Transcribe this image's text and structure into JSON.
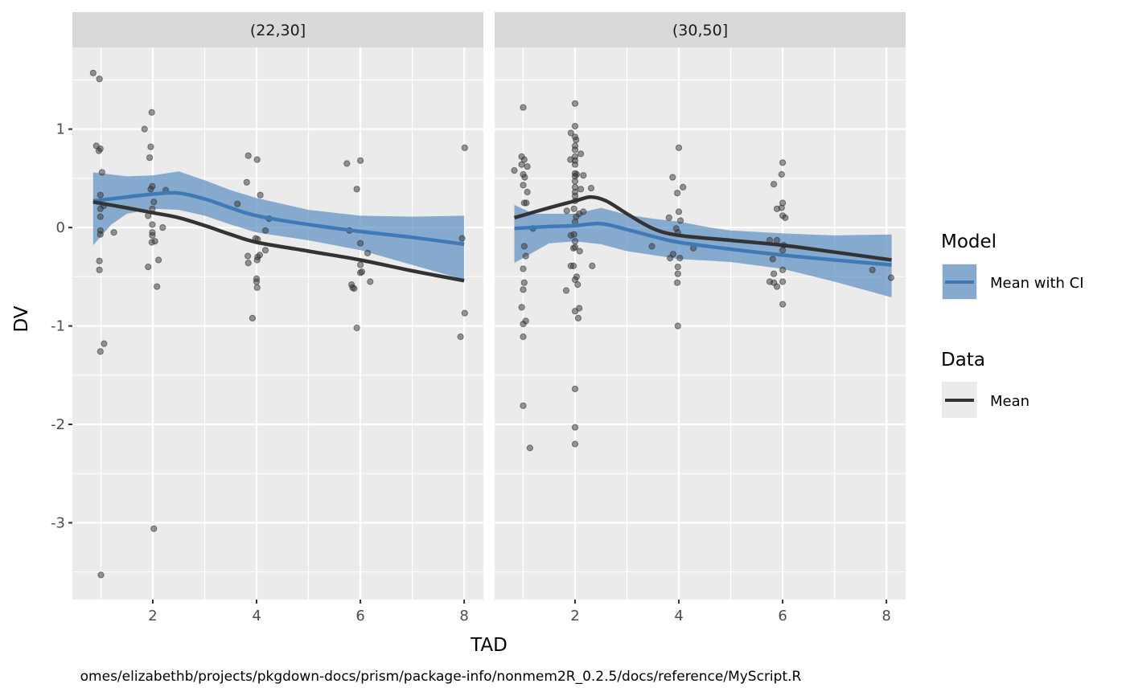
{
  "chart_data": {
    "type": "scatter",
    "title": "",
    "xlabel": "TAD",
    "ylabel": "DV",
    "caption": "omes/elizabethb/projects/pkgdown-docs/prism/package-info/nonmem2R_0.2.5/docs/reference/MyScript.R",
    "xlim": [
      0.45,
      8.37
    ],
    "ylim": [
      -3.78,
      1.83
    ],
    "x_ticks": [
      2,
      4,
      6,
      8
    ],
    "x_tick_labels": [
      "2",
      "4",
      "6",
      "8"
    ],
    "y_ticks": [
      1,
      0,
      -1,
      -2,
      -3
    ],
    "y_tick_labels": [
      "1",
      "0",
      "-1",
      "-2",
      "-3"
    ],
    "grid": true,
    "colors": {
      "points": "#333333",
      "data_mean": "#333333",
      "model_mean": "#3f7ab5",
      "model_ci": "#5b8fc2",
      "panel_bg": "#ebebeb",
      "strip_bg": "#d9d9d9"
    },
    "legend": {
      "position": "right",
      "groups": [
        {
          "title": "Model",
          "entries": [
            {
              "label": "Mean with CI",
              "kind": "ribbon-line"
            }
          ]
        },
        {
          "title": "Data",
          "entries": [
            {
              "label": "Mean",
              "kind": "line"
            }
          ]
        }
      ]
    },
    "panels": [
      {
        "strip": "(22,30]",
        "points": [
          [
            0.85,
            1.57
          ],
          [
            0.97,
            1.51
          ],
          [
            0.91,
            0.83
          ],
          [
            0.99,
            0.8
          ],
          [
            0.96,
            0.78
          ],
          [
            1.02,
            0.56
          ],
          [
            0.99,
            0.33
          ],
          [
            0.99,
            0.19
          ],
          [
            0.99,
            0.11
          ],
          [
            1.05,
            0.22
          ],
          [
            0.99,
            -0.03
          ],
          [
            0.99,
            -0.07
          ],
          [
            1.25,
            -0.05
          ],
          [
            0.97,
            -0.34
          ],
          [
            0.97,
            -0.43
          ],
          [
            1.06,
            -1.18
          ],
          [
            0.99,
            -1.26
          ],
          [
            1.0,
            -3.53
          ],
          [
            1.98,
            1.17
          ],
          [
            1.84,
            1.0
          ],
          [
            1.96,
            0.82
          ],
          [
            1.94,
            0.71
          ],
          [
            1.99,
            0.42
          ],
          [
            1.96,
            0.39
          ],
          [
            2.25,
            0.38
          ],
          [
            2.02,
            0.26
          ],
          [
            1.99,
            0.19
          ],
          [
            1.91,
            0.12
          ],
          [
            1.99,
            0.03
          ],
          [
            2.19,
            0.0
          ],
          [
            1.99,
            -0.05
          ],
          [
            1.99,
            -0.08
          ],
          [
            2.04,
            -0.14
          ],
          [
            1.98,
            -0.15
          ],
          [
            2.11,
            -0.33
          ],
          [
            1.91,
            -0.4
          ],
          [
            2.08,
            -0.6
          ],
          [
            2.02,
            -3.06
          ],
          [
            3.84,
            0.73
          ],
          [
            4.01,
            0.69
          ],
          [
            3.81,
            0.46
          ],
          [
            4.07,
            0.33
          ],
          [
            3.63,
            0.24
          ],
          [
            4.24,
            0.09
          ],
          [
            4.17,
            -0.03
          ],
          [
            3.98,
            -0.11
          ],
          [
            4.02,
            -0.12
          ],
          [
            3.83,
            -0.29
          ],
          [
            4.02,
            -0.3
          ],
          [
            4.06,
            -0.28
          ],
          [
            4.17,
            -0.23
          ],
          [
            3.84,
            -0.36
          ],
          [
            4.01,
            -0.33
          ],
          [
            4.0,
            -0.52
          ],
          [
            4.0,
            -0.55
          ],
          [
            4.01,
            -0.61
          ],
          [
            3.92,
            -0.92
          ],
          [
            5.74,
            0.65
          ],
          [
            6.0,
            0.68
          ],
          [
            5.93,
            0.39
          ],
          [
            5.79,
            -0.03
          ],
          [
            6.0,
            -0.16
          ],
          [
            6.14,
            -0.26
          ],
          [
            6.0,
            -0.38
          ],
          [
            6.0,
            -0.46
          ],
          [
            6.03,
            -0.45
          ],
          [
            6.19,
            -0.55
          ],
          [
            5.83,
            -0.58
          ],
          [
            5.85,
            -0.61
          ],
          [
            5.88,
            -0.62
          ],
          [
            5.93,
            -1.02
          ],
          [
            8.01,
            0.81
          ],
          [
            7.96,
            -0.11
          ],
          [
            8.01,
            -0.87
          ],
          [
            7.93,
            -1.11
          ]
        ],
        "data_mean": [
          [
            0.85,
            0.26
          ],
          [
            1.5,
            0.2
          ],
          [
            2.0,
            0.15
          ],
          [
            2.5,
            0.1
          ],
          [
            3.0,
            0.02
          ],
          [
            3.5,
            -0.07
          ],
          [
            4.0,
            -0.15
          ],
          [
            5.0,
            -0.24
          ],
          [
            6.0,
            -0.33
          ],
          [
            7.0,
            -0.44
          ],
          [
            8.0,
            -0.54
          ]
        ],
        "model_mean": [
          [
            0.85,
            0.27
          ],
          [
            1.5,
            0.31
          ],
          [
            2.0,
            0.34
          ],
          [
            2.5,
            0.35
          ],
          [
            3.0,
            0.29
          ],
          [
            3.5,
            0.2
          ],
          [
            4.0,
            0.12
          ],
          [
            5.0,
            0.03
          ],
          [
            6.0,
            -0.04
          ],
          [
            7.0,
            -0.1
          ],
          [
            8.0,
            -0.17
          ]
        ],
        "ci_upper": [
          [
            0.85,
            0.56
          ],
          [
            1.5,
            0.52
          ],
          [
            2.0,
            0.53
          ],
          [
            2.5,
            0.57
          ],
          [
            3.0,
            0.48
          ],
          [
            3.5,
            0.38
          ],
          [
            4.0,
            0.3
          ],
          [
            5.0,
            0.18
          ],
          [
            6.0,
            0.12
          ],
          [
            7.0,
            0.11
          ],
          [
            8.0,
            0.12
          ]
        ],
        "ci_lower": [
          [
            0.85,
            -0.18
          ],
          [
            1.2,
            0.03
          ],
          [
            1.5,
            0.14
          ],
          [
            2.0,
            0.19
          ],
          [
            2.5,
            0.18
          ],
          [
            3.0,
            0.12
          ],
          [
            3.5,
            0.03
          ],
          [
            4.0,
            -0.05
          ],
          [
            5.0,
            -0.13
          ],
          [
            6.0,
            -0.23
          ],
          [
            7.0,
            -0.38
          ],
          [
            8.0,
            -0.53
          ]
        ]
      },
      {
        "strip": "(30,50]",
        "points": [
          [
            0.83,
            0.58
          ],
          [
            0.97,
            0.72
          ],
          [
            1.02,
            0.69
          ],
          [
            0.97,
            0.64
          ],
          [
            1.08,
            0.62
          ],
          [
            1.0,
            0.54
          ],
          [
            1.03,
            0.51
          ],
          [
            1.0,
            0.43
          ],
          [
            1.08,
            0.36
          ],
          [
            1.02,
            0.25
          ],
          [
            1.06,
            0.25
          ],
          [
            1.19,
            -0.01
          ],
          [
            1.02,
            -0.19
          ],
          [
            1.05,
            -0.29
          ],
          [
            1.0,
            -0.42
          ],
          [
            1.02,
            -0.56
          ],
          [
            1.0,
            -0.63
          ],
          [
            0.97,
            -0.81
          ],
          [
            1.05,
            -0.95
          ],
          [
            1.0,
            -0.98
          ],
          [
            1.0,
            -1.11
          ],
          [
            1.0,
            -1.81
          ],
          [
            1.13,
            -2.24
          ],
          [
            1.0,
            1.22
          ],
          [
            2.0,
            1.26
          ],
          [
            2.0,
            1.03
          ],
          [
            1.92,
            0.96
          ],
          [
            2.0,
            0.92
          ],
          [
            2.02,
            0.89
          ],
          [
            2.0,
            0.83
          ],
          [
            2.0,
            0.79
          ],
          [
            2.11,
            0.75
          ],
          [
            2.0,
            0.72
          ],
          [
            1.91,
            0.69
          ],
          [
            2.0,
            0.68
          ],
          [
            2.0,
            0.64
          ],
          [
            2.0,
            0.55
          ],
          [
            2.03,
            0.54
          ],
          [
            2.0,
            0.52
          ],
          [
            2.16,
            0.53
          ],
          [
            2.0,
            0.47
          ],
          [
            2.0,
            0.41
          ],
          [
            2.11,
            0.39
          ],
          [
            2.31,
            0.4
          ],
          [
            2.0,
            0.36
          ],
          [
            2.0,
            0.32
          ],
          [
            2.0,
            0.27
          ],
          [
            1.84,
            0.17
          ],
          [
            1.98,
            0.19
          ],
          [
            2.16,
            0.16
          ],
          [
            2.02,
            0.11
          ],
          [
            2.08,
            0.14
          ],
          [
            2.0,
            0.06
          ],
          [
            1.98,
            -0.07
          ],
          [
            1.92,
            -0.08
          ],
          [
            2.0,
            -0.14
          ],
          [
            2.0,
            -0.2
          ],
          [
            1.97,
            -0.21
          ],
          [
            2.09,
            -0.24
          ],
          [
            1.97,
            -0.39
          ],
          [
            2.33,
            -0.39
          ],
          [
            1.92,
            -0.39
          ],
          [
            1.83,
            -0.64
          ],
          [
            2.03,
            -0.5
          ],
          [
            2.0,
            -0.53
          ],
          [
            2.05,
            -0.58
          ],
          [
            2.0,
            -0.85
          ],
          [
            2.08,
            -0.82
          ],
          [
            2.06,
            -0.92
          ],
          [
            2.0,
            -1.64
          ],
          [
            2.0,
            -2.03
          ],
          [
            2.0,
            -2.2
          ],
          [
            3.88,
            0.51
          ],
          [
            4.0,
            0.81
          ],
          [
            3.81,
            0.1
          ],
          [
            3.97,
            0.35
          ],
          [
            4.08,
            0.41
          ],
          [
            4.0,
            0.16
          ],
          [
            4.03,
            0.07
          ],
          [
            3.95,
            -0.01
          ],
          [
            3.98,
            -0.05
          ],
          [
            3.48,
            -0.19
          ],
          [
            4.28,
            -0.21
          ],
          [
            3.89,
            -0.27
          ],
          [
            3.83,
            -0.31
          ],
          [
            4.02,
            -0.31
          ],
          [
            3.98,
            -0.4
          ],
          [
            3.98,
            -0.47
          ],
          [
            3.97,
            -0.56
          ],
          [
            3.98,
            -1.0
          ],
          [
            6.0,
            0.66
          ],
          [
            5.98,
            0.54
          ],
          [
            5.83,
            0.44
          ],
          [
            5.89,
            0.19
          ],
          [
            6.0,
            0.25
          ],
          [
            5.98,
            0.2
          ],
          [
            6.0,
            0.12
          ],
          [
            6.05,
            0.1
          ],
          [
            5.75,
            -0.13
          ],
          [
            5.89,
            -0.13
          ],
          [
            6.02,
            -0.18
          ],
          [
            6.0,
            -0.23
          ],
          [
            5.81,
            -0.32
          ],
          [
            6.0,
            -0.43
          ],
          [
            5.83,
            -0.47
          ],
          [
            5.75,
            -0.55
          ],
          [
            5.83,
            -0.56
          ],
          [
            5.89,
            -0.6
          ],
          [
            6.0,
            -0.55
          ],
          [
            6.0,
            -0.78
          ],
          [
            7.73,
            -0.43
          ],
          [
            8.09,
            -0.51
          ]
        ],
        "data_mean": [
          [
            0.83,
            0.1
          ],
          [
            1.5,
            0.2
          ],
          [
            2.0,
            0.27
          ],
          [
            2.3,
            0.31
          ],
          [
            2.6,
            0.27
          ],
          [
            3.0,
            0.14
          ],
          [
            3.5,
            -0.01
          ],
          [
            4.0,
            -0.08
          ],
          [
            5.0,
            -0.13
          ],
          [
            6.0,
            -0.18
          ],
          [
            7.0,
            -0.25
          ],
          [
            8.1,
            -0.33
          ]
        ],
        "model_mean": [
          [
            0.83,
            -0.01
          ],
          [
            1.5,
            0.01
          ],
          [
            2.0,
            0.02
          ],
          [
            2.5,
            0.04
          ],
          [
            3.0,
            -0.02
          ],
          [
            3.5,
            -0.09
          ],
          [
            4.0,
            -0.15
          ],
          [
            5.0,
            -0.22
          ],
          [
            6.0,
            -0.28
          ],
          [
            7.0,
            -0.33
          ],
          [
            8.1,
            -0.38
          ]
        ],
        "ci_upper": [
          [
            0.83,
            0.23
          ],
          [
            1.2,
            0.14
          ],
          [
            2.0,
            0.14
          ],
          [
            2.5,
            0.2
          ],
          [
            3.0,
            0.13
          ],
          [
            3.5,
            0.09
          ],
          [
            4.0,
            0.06
          ],
          [
            4.6,
            0.0
          ],
          [
            5.0,
            -0.03
          ],
          [
            6.0,
            -0.06
          ],
          [
            7.0,
            -0.08
          ],
          [
            8.1,
            -0.07
          ]
        ],
        "ci_lower": [
          [
            0.83,
            -0.36
          ],
          [
            1.5,
            -0.16
          ],
          [
            2.0,
            -0.14
          ],
          [
            2.5,
            -0.17
          ],
          [
            3.0,
            -0.24
          ],
          [
            3.5,
            -0.28
          ],
          [
            4.0,
            -0.32
          ],
          [
            5.0,
            -0.35
          ],
          [
            6.0,
            -0.42
          ],
          [
            7.0,
            -0.55
          ],
          [
            8.1,
            -0.71
          ]
        ]
      }
    ]
  }
}
